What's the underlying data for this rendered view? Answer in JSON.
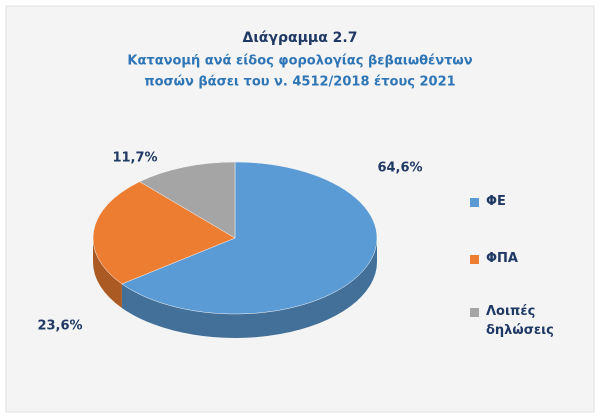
{
  "chart_data": {
    "type": "pie3d",
    "title": "Διάγραμμα 2.7",
    "subtitle": [
      "Κατανομή ανά είδος φορολογίας βεβαιωθέντων",
      "ποσών βάσει του ν. 4512/2018 έτους 2021"
    ],
    "categories": [
      "ΦΕ",
      "ΦΠΑ",
      "Λοιπές δηλώσεις"
    ],
    "values": [
      64.6,
      23.6,
      11.7
    ],
    "value_labels": [
      "64,6%",
      "23,6%",
      "11,7%"
    ],
    "colors": [
      "#5b9bd5",
      "#ed7d31",
      "#a5a5a5"
    ],
    "legend": "right"
  }
}
